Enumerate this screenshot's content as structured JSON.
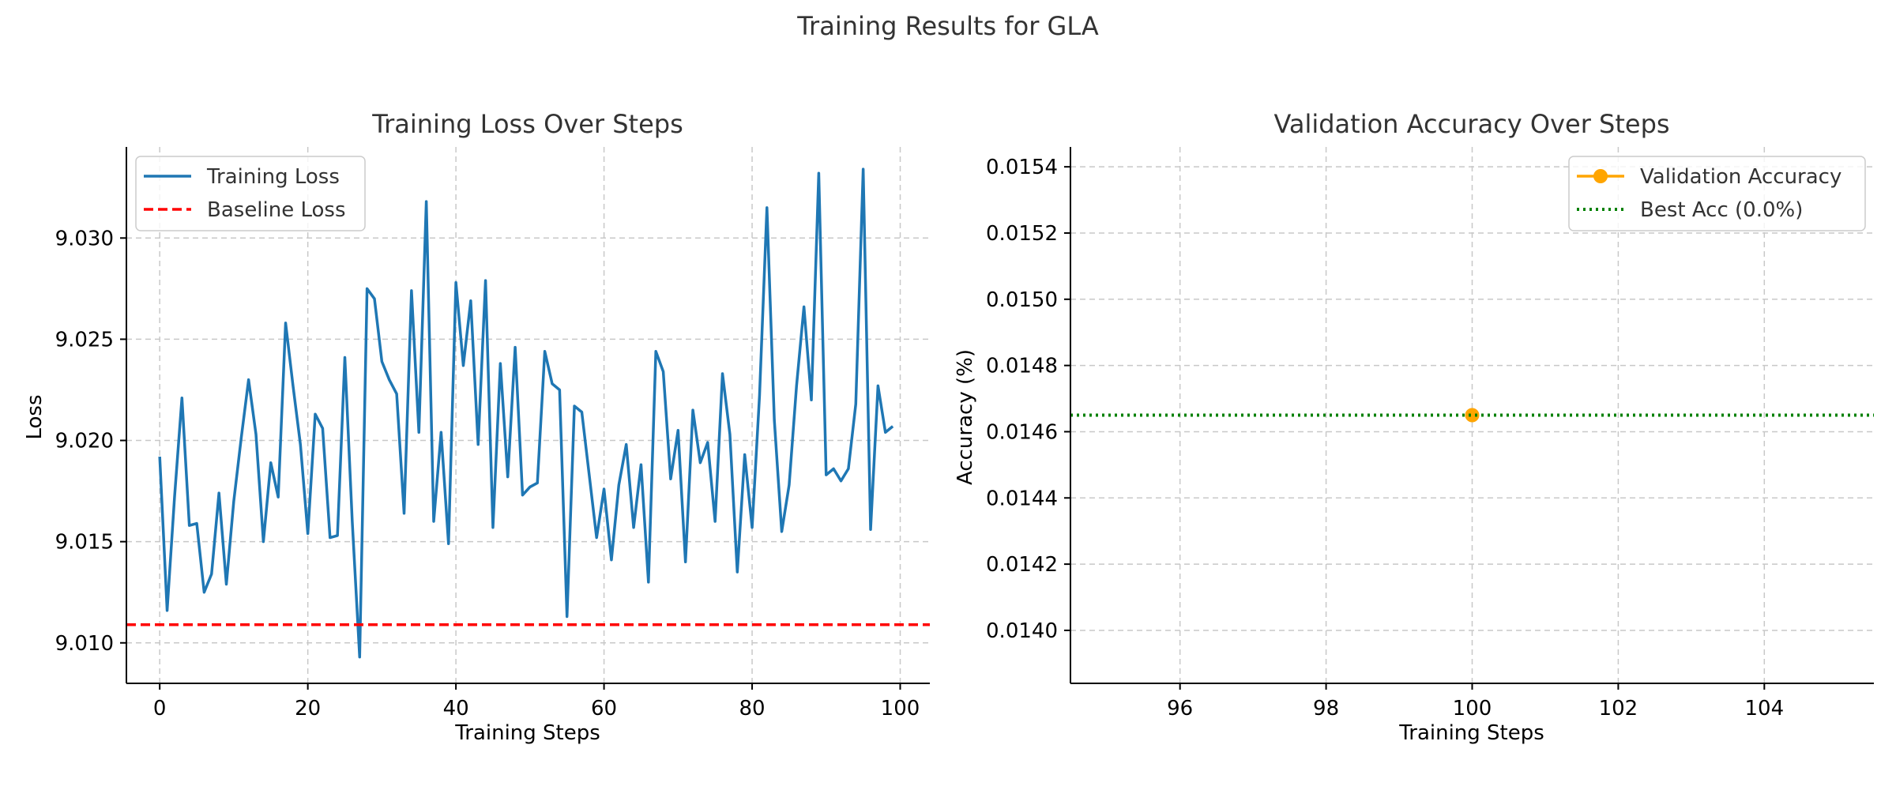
{
  "figure": {
    "title": "Training Results for GLA"
  },
  "colors": {
    "loss": "#1f77b4",
    "baseline": "#ff0000",
    "accuracy": "#ffa500",
    "best": "#008000",
    "grid": "#c8c8c8"
  },
  "chart_data": [
    {
      "type": "line",
      "title": "Training Loss Over Steps",
      "xlabel": "Training Steps",
      "ylabel": "Loss",
      "xlim": [
        -4.5,
        104
      ],
      "ylim": [
        9.008,
        9.0345
      ],
      "xticks": [
        0,
        20,
        40,
        60,
        80,
        100
      ],
      "yticks": [
        9.01,
        9.015,
        9.02,
        9.025,
        9.03
      ],
      "ytick_labels": [
        "9.010",
        "9.015",
        "9.020",
        "9.025",
        "9.030"
      ],
      "grid": true,
      "legend_position": "top-left",
      "series": [
        {
          "name": "Training Loss",
          "style": "solid",
          "x": [
            0,
            1,
            2,
            3,
            4,
            5,
            6,
            7,
            8,
            9,
            10,
            11,
            12,
            13,
            14,
            15,
            16,
            17,
            18,
            19,
            20,
            21,
            22,
            23,
            24,
            25,
            26,
            27,
            28,
            29,
            30,
            31,
            32,
            33,
            34,
            35,
            36,
            37,
            38,
            39,
            40,
            41,
            42,
            43,
            44,
            45,
            46,
            47,
            48,
            49,
            50,
            51,
            52,
            53,
            54,
            55,
            56,
            57,
            58,
            59,
            60,
            61,
            62,
            63,
            64,
            65,
            66,
            67,
            68,
            69,
            70,
            71,
            72,
            73,
            74,
            75,
            76,
            77,
            78,
            79,
            80,
            81,
            82,
            83,
            84,
            85,
            86,
            87,
            88,
            89,
            90,
            91,
            92,
            93,
            94,
            95,
            96,
            97,
            98,
            99
          ],
          "values": [
            9.0192,
            9.0116,
            9.0172,
            9.0221,
            9.0158,
            9.0159,
            9.0125,
            9.0134,
            9.0174,
            9.0129,
            9.017,
            9.0201,
            9.023,
            9.0203,
            9.015,
            9.0189,
            9.0172,
            9.0258,
            9.0227,
            9.0198,
            9.0154,
            9.0213,
            9.0206,
            9.0152,
            9.0153,
            9.0241,
            9.016,
            9.0093,
            9.0275,
            9.027,
            9.0239,
            9.023,
            9.0223,
            9.0164,
            9.0274,
            9.0204,
            9.0318,
            9.016,
            9.0204,
            9.0149,
            9.0278,
            9.0237,
            9.0269,
            9.0198,
            9.0279,
            9.0157,
            9.0238,
            9.0182,
            9.0246,
            9.0173,
            9.0177,
            9.0179,
            9.0244,
            9.0228,
            9.0225,
            9.0113,
            9.0217,
            9.0214,
            9.0183,
            9.0152,
            9.0176,
            9.0141,
            9.0178,
            9.0198,
            9.0157,
            9.0188,
            9.013,
            9.0244,
            9.0234,
            9.0181,
            9.0205,
            9.014,
            9.0215,
            9.0189,
            9.0199,
            9.016,
            9.0233,
            9.0203,
            9.0135,
            9.0193,
            9.0157,
            9.0222,
            9.0315,
            9.021,
            9.0155,
            9.0178,
            9.0227,
            9.0266,
            9.022,
            9.0332,
            9.0183,
            9.0186,
            9.018,
            9.0186,
            9.0218,
            9.0334,
            9.0156,
            9.0227,
            9.0204,
            9.0207
          ]
        },
        {
          "name": "Baseline Loss",
          "style": "dashed",
          "constant": 9.0109
        }
      ]
    },
    {
      "type": "line",
      "title": "Validation Accuracy Over Steps",
      "xlabel": "Training Steps",
      "ylabel": "Accuracy (%)",
      "xlim": [
        94.5,
        105.5
      ],
      "ylim": [
        0.01384,
        0.01546
      ],
      "xticks": [
        96,
        98,
        100,
        102,
        104
      ],
      "yticks": [
        0.014,
        0.0142,
        0.0144,
        0.0146,
        0.0148,
        0.015,
        0.0152,
        0.0154
      ],
      "ytick_labels": [
        "0.0140",
        "0.0142",
        "0.0144",
        "0.0146",
        "0.0148",
        "0.0150",
        "0.0152",
        "0.0154"
      ],
      "grid": true,
      "legend_position": "top-right",
      "series": [
        {
          "name": "Validation Accuracy",
          "style": "solid-marker",
          "x": [
            100
          ],
          "values": [
            0.01465
          ]
        },
        {
          "name": "Best Acc (0.0%)",
          "style": "dotted",
          "constant": 0.01465
        }
      ]
    }
  ]
}
